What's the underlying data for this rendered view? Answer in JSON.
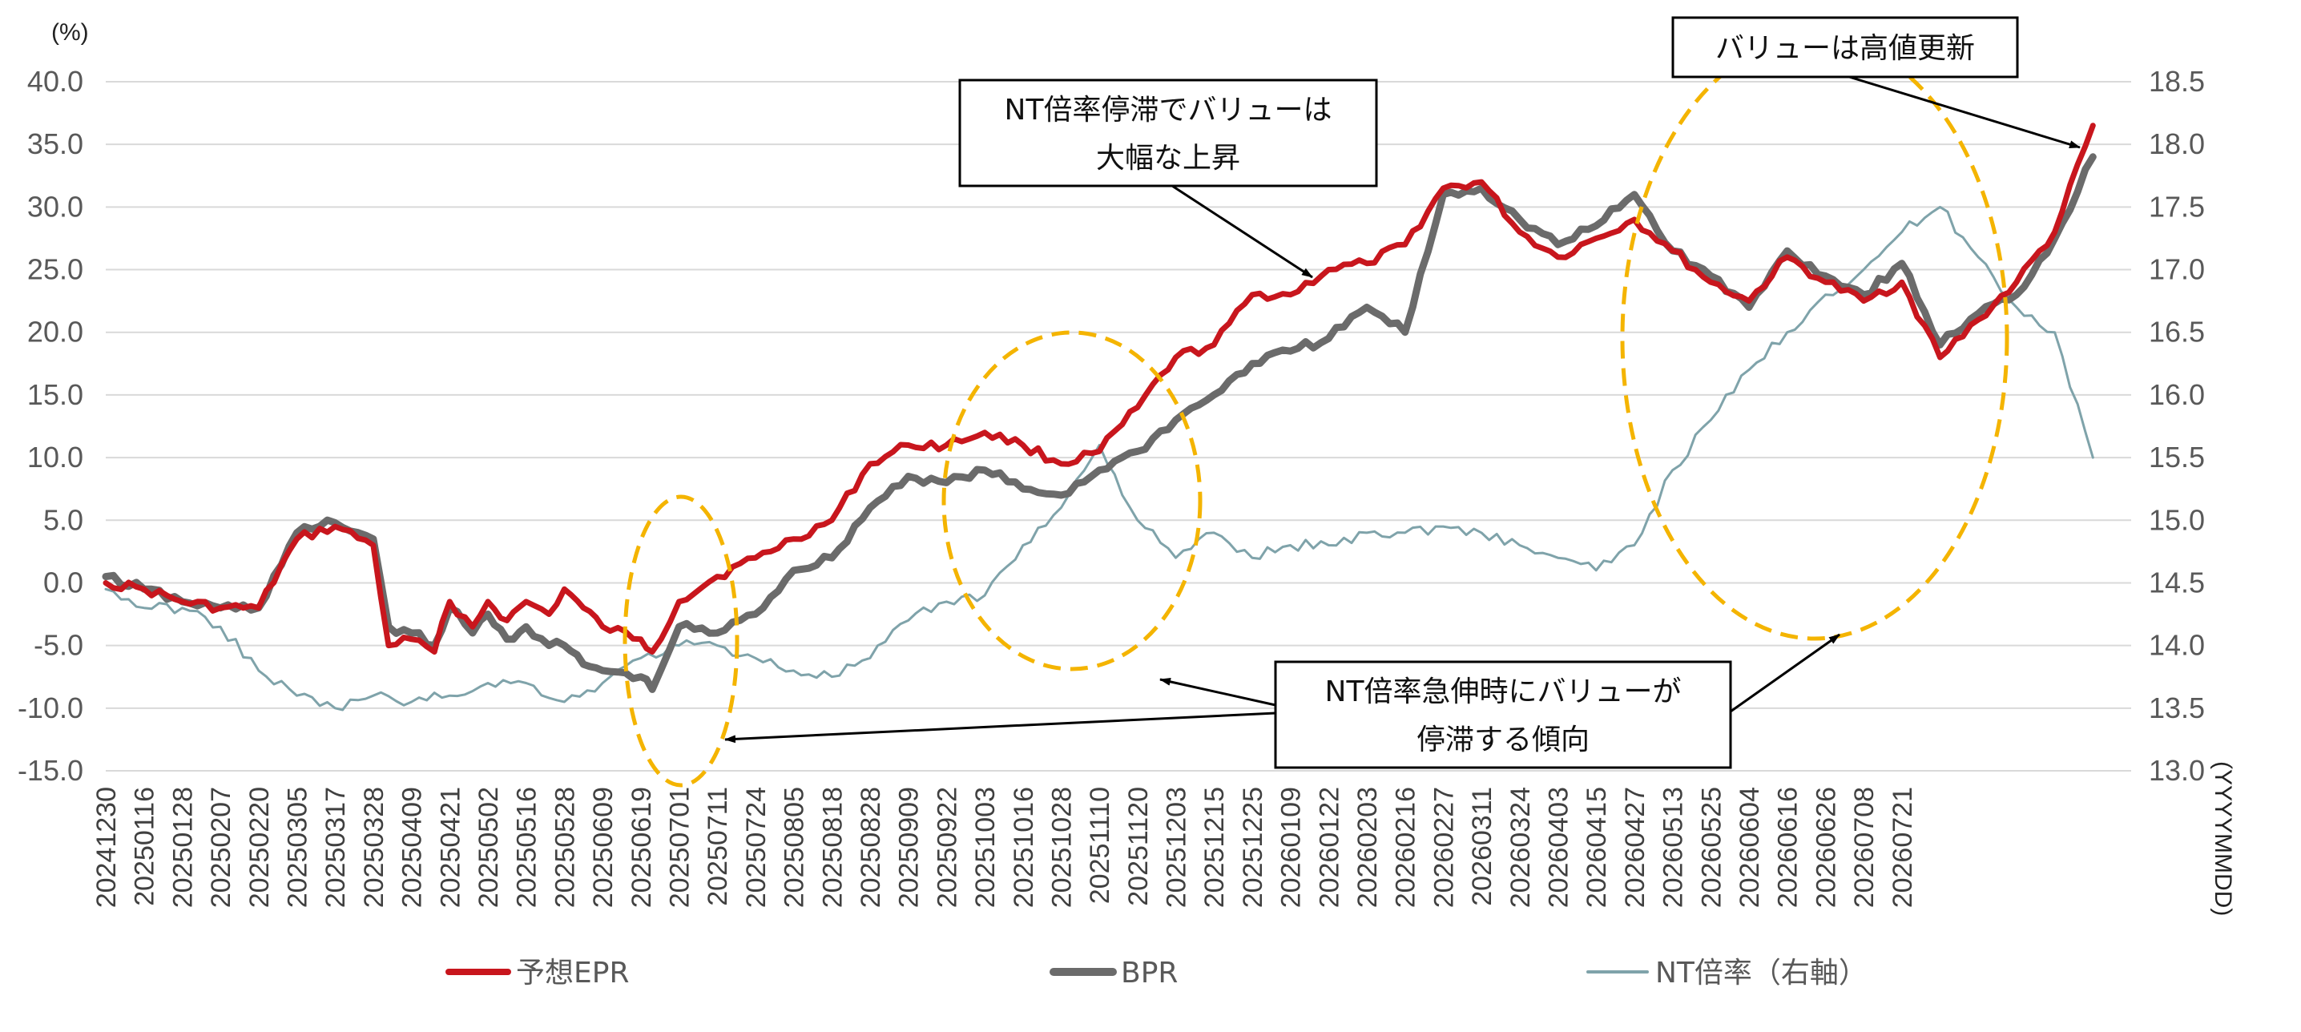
{
  "chart_data": {
    "type": "line",
    "y_unit_label": "(%)",
    "x_unit_label": "(YYYYMMDD)",
    "ylim": [
      -15,
      40
    ],
    "y2lim": [
      13.0,
      18.5
    ],
    "y_ticks": [
      "40.0",
      "35.0",
      "30.0",
      "25.0",
      "20.0",
      "15.0",
      "10.0",
      "5.0",
      "0.0",
      "-5.0",
      "-10.0",
      "-15.0"
    ],
    "y2_ticks": [
      "18.5",
      "18.0",
      "17.5",
      "17.0",
      "16.5",
      "16.0",
      "15.5",
      "15.0",
      "14.5",
      "14.0",
      "13.5",
      "13.0"
    ],
    "x_tick_labels": [
      "20241230",
      "20250116",
      "20250128",
      "20250207",
      "20250220",
      "20250305",
      "20250317",
      "20250328",
      "20250409",
      "20250421",
      "20250502",
      "20250516",
      "20250528",
      "20250609",
      "20250619",
      "20250701",
      "20250711",
      "20250724",
      "20250805",
      "20250818",
      "20250828",
      "20250909",
      "20250922",
      "20251003",
      "20251016",
      "20251028",
      "20251110",
      "20251120",
      "20251203",
      "20251215",
      "20251225",
      "20260109",
      "20260122",
      "20260203",
      "20260216",
      "20260227",
      "20260311",
      "20260324",
      "20260403",
      "20260415",
      "20260427",
      "20260513",
      "20260525",
      "20260604",
      "20260616",
      "20260626",
      "20260708",
      "20260721"
    ],
    "grid": "horizontal",
    "legend_position": "bottom",
    "series": [
      {
        "name": "予想EPR",
        "color": "#c8161d",
        "axis": "left",
        "points": [
          [
            0,
            0.0
          ],
          [
            1,
            -0.5
          ],
          [
            2,
            -1.5
          ],
          [
            3,
            -2.0
          ],
          [
            4,
            -2.0
          ],
          [
            5,
            3.5
          ],
          [
            6,
            4.5
          ],
          [
            7,
            3.0
          ],
          [
            7.4,
            -5.0
          ],
          [
            8,
            -4.5
          ],
          [
            8.6,
            -5.5
          ],
          [
            9,
            -1.5
          ],
          [
            9.6,
            -3.5
          ],
          [
            10,
            -1.5
          ],
          [
            10.5,
            -3.0
          ],
          [
            11,
            -1.5
          ],
          [
            11.6,
            -2.5
          ],
          [
            12,
            -0.5
          ],
          [
            12.5,
            -2.0
          ],
          [
            13,
            -3.5
          ],
          [
            14,
            -4.5
          ],
          [
            14.3,
            -5.5
          ],
          [
            15,
            -1.5
          ],
          [
            16,
            0.5
          ],
          [
            17,
            2.0
          ],
          [
            18,
            3.5
          ],
          [
            19,
            5.0
          ],
          [
            20,
            9.5
          ],
          [
            21,
            11.0
          ],
          [
            22,
            11.0
          ],
          [
            23,
            12.0
          ],
          [
            24,
            11.0
          ],
          [
            25,
            9.5
          ],
          [
            26,
            10.5
          ],
          [
            27,
            14.0
          ],
          [
            28,
            18.0
          ],
          [
            29,
            19.0
          ],
          [
            30,
            23.0
          ],
          [
            31,
            23.0
          ],
          [
            32,
            25.0
          ],
          [
            33,
            25.5
          ],
          [
            34,
            27.0
          ],
          [
            35,
            31.5
          ],
          [
            36,
            32.0
          ],
          [
            37,
            28.0
          ],
          [
            38,
            26.0
          ],
          [
            39,
            27.5
          ],
          [
            40,
            29.0
          ],
          [
            41,
            26.5
          ],
          [
            42,
            24.0
          ],
          [
            43,
            22.5
          ],
          [
            44,
            26.0
          ],
          [
            45,
            24.0
          ],
          [
            46,
            22.5
          ],
          [
            47,
            24.0
          ],
          [
            48,
            18.0
          ],
          [
            49,
            21.0
          ],
          [
            50,
            24.0
          ],
          [
            51,
            28.0
          ],
          [
            52,
            36.5
          ]
        ]
      },
      {
        "name": "BPR",
        "color": "#6b6b6b",
        "axis": "left",
        "points": [
          [
            0,
            0.5
          ],
          [
            1,
            -0.5
          ],
          [
            2,
            -1.5
          ],
          [
            3,
            -2.0
          ],
          [
            4,
            -2.0
          ],
          [
            5,
            4.0
          ],
          [
            6,
            4.8
          ],
          [
            7,
            3.5
          ],
          [
            7.4,
            -3.5
          ],
          [
            8,
            -4.0
          ],
          [
            8.6,
            -5.0
          ],
          [
            9,
            -2.0
          ],
          [
            9.6,
            -4.0
          ],
          [
            10,
            -2.5
          ],
          [
            10.5,
            -4.5
          ],
          [
            11,
            -3.5
          ],
          [
            11.6,
            -5.0
          ],
          [
            12,
            -5.0
          ],
          [
            12.5,
            -6.5
          ],
          [
            13,
            -7.0
          ],
          [
            14,
            -7.5
          ],
          [
            14.3,
            -8.5
          ],
          [
            15,
            -3.5
          ],
          [
            16,
            -4.0
          ],
          [
            17,
            -2.5
          ],
          [
            18,
            1.0
          ],
          [
            19,
            2.0
          ],
          [
            20,
            6.0
          ],
          [
            21,
            8.5
          ],
          [
            22,
            8.0
          ],
          [
            23,
            9.0
          ],
          [
            24,
            7.5
          ],
          [
            25,
            7.0
          ],
          [
            26,
            9.0
          ],
          [
            27,
            10.5
          ],
          [
            28,
            13.0
          ],
          [
            29,
            15.0
          ],
          [
            30,
            17.5
          ],
          [
            31,
            18.5
          ],
          [
            32,
            19.5
          ],
          [
            33,
            22.0
          ],
          [
            34,
            20.0
          ],
          [
            35,
            31.0
          ],
          [
            36,
            31.5
          ],
          [
            37,
            29.0
          ],
          [
            38,
            27.0
          ],
          [
            39,
            28.5
          ],
          [
            40,
            31.0
          ],
          [
            41,
            26.5
          ],
          [
            42,
            24.5
          ],
          [
            43,
            22.0
          ],
          [
            44,
            26.5
          ],
          [
            45,
            24.5
          ],
          [
            46,
            23.0
          ],
          [
            47,
            25.5
          ],
          [
            48,
            19.0
          ],
          [
            49,
            21.5
          ],
          [
            50,
            23.0
          ],
          [
            51,
            27.5
          ],
          [
            52,
            34.0
          ]
        ]
      },
      {
        "name": "NT倍率（右軸）",
        "color": "#7fa3aa",
        "axis": "right",
        "points": [
          [
            0,
            14.45
          ],
          [
            1,
            14.3
          ],
          [
            2,
            14.3
          ],
          [
            3,
            14.15
          ],
          [
            4,
            13.8
          ],
          [
            5,
            13.6
          ],
          [
            6,
            13.5
          ],
          [
            7,
            13.6
          ],
          [
            8,
            13.55
          ],
          [
            9,
            13.6
          ],
          [
            10,
            13.7
          ],
          [
            11,
            13.7
          ],
          [
            12,
            13.55
          ],
          [
            13,
            13.7
          ],
          [
            14,
            13.9
          ],
          [
            15,
            14.0
          ],
          [
            16,
            14.0
          ],
          [
            17,
            13.9
          ],
          [
            18,
            13.8
          ],
          [
            19,
            13.75
          ],
          [
            20,
            13.9
          ],
          [
            21,
            14.2
          ],
          [
            22,
            14.35
          ],
          [
            23,
            14.4
          ],
          [
            24,
            14.8
          ],
          [
            25,
            15.1
          ],
          [
            26,
            15.6
          ],
          [
            27,
            15.0
          ],
          [
            28,
            14.7
          ],
          [
            29,
            14.9
          ],
          [
            30,
            14.7
          ],
          [
            31,
            14.8
          ],
          [
            32,
            14.8
          ],
          [
            33,
            14.9
          ],
          [
            34,
            14.9
          ],
          [
            35,
            14.95
          ],
          [
            36,
            14.9
          ],
          [
            37,
            14.8
          ],
          [
            38,
            14.7
          ],
          [
            39,
            14.6
          ],
          [
            40,
            14.8
          ],
          [
            41,
            15.4
          ],
          [
            42,
            15.8
          ],
          [
            43,
            16.2
          ],
          [
            44,
            16.5
          ],
          [
            45,
            16.8
          ],
          [
            46,
            17.0
          ],
          [
            47,
            17.3
          ],
          [
            48,
            17.5
          ],
          [
            49,
            17.1
          ],
          [
            50,
            16.7
          ],
          [
            51,
            16.5
          ],
          [
            52,
            15.5
          ]
        ]
      }
    ],
    "annotations": {
      "top_center": [
        "NT倍率停滞でバリューは",
        "大幅な上昇"
      ],
      "top_right": "バリューは高値更新",
      "bottom": [
        "NT倍率急伸時にバリューが",
        "停滞する傾向"
      ]
    }
  }
}
